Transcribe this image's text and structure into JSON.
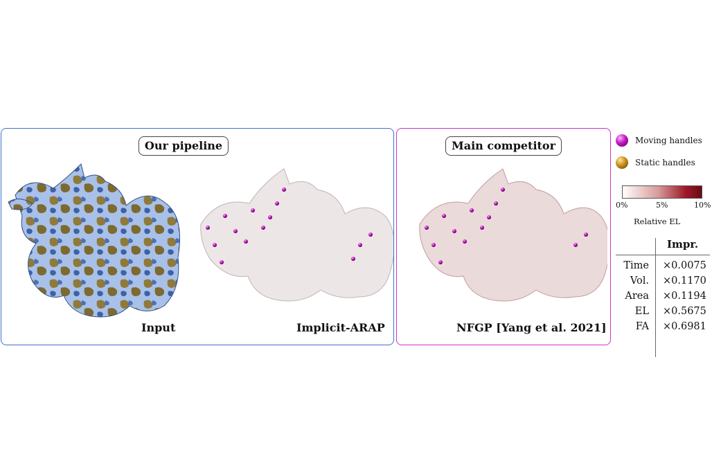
{
  "panels": {
    "ours": {
      "title": "Our pipeline",
      "captions": [
        "Input",
        "Implicit-ARAP"
      ],
      "border_color": "#3f6fd0"
    },
    "competitor": {
      "title": "Main competitor",
      "caption": "NFGP [Yang et al. 2021]",
      "border_color": "#d030c8"
    }
  },
  "legend": {
    "moving": {
      "label": "Moving handles",
      "color": "#c018c0"
    },
    "static": {
      "label": "Static handles",
      "color": "#c8901c"
    }
  },
  "colorbar": {
    "ticks": [
      "0%",
      "5%",
      "10%"
    ],
    "label": "Relative EL",
    "colors": [
      "#ffffff",
      "#d89a9a",
      "#6e0a14"
    ]
  },
  "table": {
    "header": "Impr.",
    "rows": [
      {
        "metric": "Time",
        "value": "×0.0075"
      },
      {
        "metric": "Vol.",
        "value": "×0.1170"
      },
      {
        "metric": "Area",
        "value": "×0.1194"
      },
      {
        "metric": "EL",
        "value": "×0.5675"
      },
      {
        "metric": "FA",
        "value": "×0.6981"
      }
    ]
  }
}
